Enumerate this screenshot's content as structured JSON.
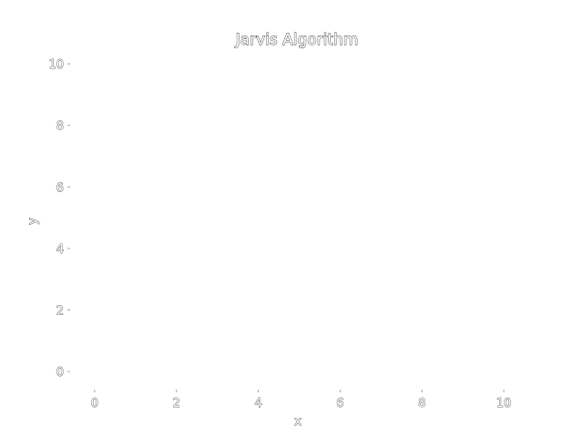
{
  "chart_data": {
    "type": "scatter",
    "title": "Jarvis Algorithm",
    "xlabel": "x",
    "ylabel": "y",
    "xlim": [
      -0.6,
      10.6
    ],
    "ylim": [
      -0.5,
      10.3
    ],
    "x_ticks": [
      0,
      2,
      4,
      6,
      8,
      10
    ],
    "y_ticks": [
      0,
      2,
      4,
      6,
      8,
      10
    ],
    "grid": false,
    "series": []
  }
}
